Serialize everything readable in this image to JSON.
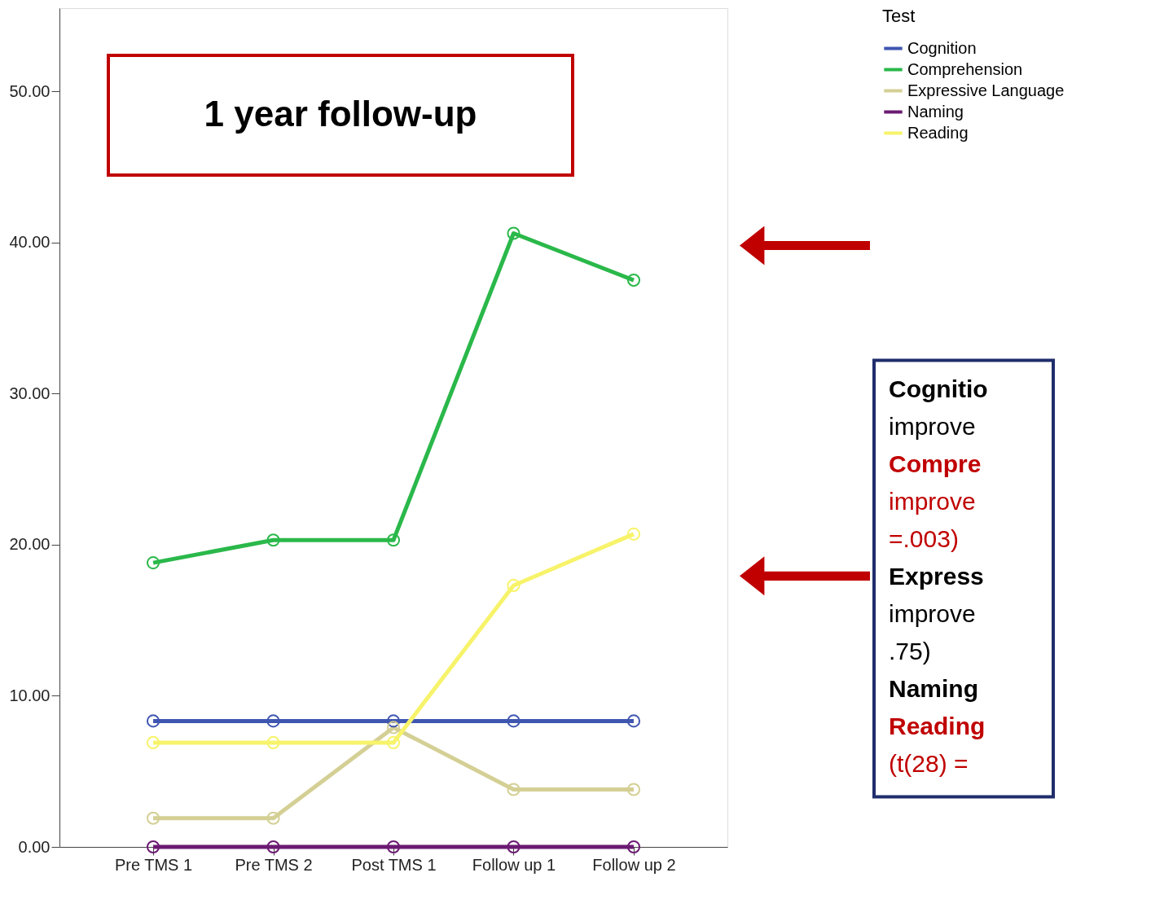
{
  "chart_data": {
    "type": "line",
    "categories": [
      "Pre TMS 1",
      "Pre TMS 2",
      "Post TMS 1",
      "Follow up 1",
      "Follow up 2"
    ],
    "series": [
      {
        "name": "Cognition",
        "color": "#3f56b0",
        "values": [
          8.33,
          8.33,
          8.33,
          8.33,
          8.33
        ]
      },
      {
        "name": "Comprehension",
        "color": "#2ab84a",
        "values": [
          18.8,
          20.3,
          20.3,
          40.6,
          37.5
        ]
      },
      {
        "name": "Expressive Language",
        "color": "#d4cf94",
        "values": [
          1.9,
          1.9,
          7.9,
          3.8,
          3.8
        ]
      },
      {
        "name": "Naming",
        "color": "#6b1a72",
        "values": [
          0,
          0,
          0,
          0,
          0
        ]
      },
      {
        "name": "Reading",
        "color": "#f7f36a",
        "values": [
          6.9,
          6.9,
          6.9,
          17.3,
          20.7
        ]
      }
    ],
    "legend_title": "Test",
    "legend": "top right",
    "marker": "circle",
    "line_style": "solid",
    "grid": false,
    "ylim": [
      0,
      55.5
    ],
    "yticks": [
      {
        "value": 0,
        "label": "0.00"
      },
      {
        "value": 10,
        "label": "10.00"
      },
      {
        "value": 20,
        "label": "20.00"
      },
      {
        "value": 30,
        "label": "30.00"
      },
      {
        "value": 40,
        "label": "40.00"
      },
      {
        "value": 50,
        "label": "50.00"
      }
    ],
    "annotations": [
      "1 year follow-up",
      "Cognitio",
      "improve",
      "Compre",
      "improve",
      "=.003)",
      "Express",
      "improve",
      ".75)",
      "Naming",
      "Reading",
      "(t(28) ="
    ]
  }
}
